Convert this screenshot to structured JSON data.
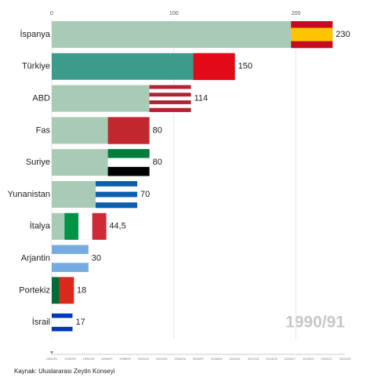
{
  "chart_data": {
    "type": "bar",
    "orientation": "horizontal",
    "categories": [
      "İspanya",
      "Türkiye",
      "ABD",
      "Fas",
      "Suriye",
      "Yunanistan",
      "İtalya",
      "Arjantin",
      "Portekiz",
      "İsrail"
    ],
    "values": [
      230,
      150,
      114,
      80,
      80,
      70,
      44.5,
      30,
      18,
      17
    ],
    "value_labels": [
      "230",
      "150",
      "114",
      "80",
      "80",
      "70",
      "44,5",
      "30",
      "18",
      "17"
    ],
    "colors": [
      "#a9cbb6",
      "#3d9b8c",
      "#a9cbb6",
      "#a9cbb6",
      "#a9cbb6",
      "#a9cbb6",
      "#a9cbb6",
      "#a9cbb6",
      "#a9cbb6",
      "#a9cbb6"
    ],
    "xlim": [
      0,
      260
    ],
    "xticks": [
      0,
      100,
      200
    ],
    "grid": true,
    "period": "1990/91",
    "timeline": [
      "1990/91",
      "1992/93",
      "1994/95",
      "1996/97",
      "1998/99",
      "2000/01",
      "2002/03",
      "2004/05",
      "2006/07",
      "2008/09",
      "2010/11",
      "2012/13",
      "2014/15",
      "2016/17",
      "2018/19",
      "2020/21",
      "2022/23"
    ],
    "source": "Kaynak: Uluslararası Zeytin Konseyi"
  }
}
